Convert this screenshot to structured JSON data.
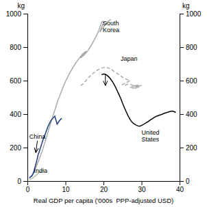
{
  "chart_data": {
    "type": "line",
    "xlabel": "Real GDP per capita ('000s  PPP-adjusted USD)",
    "ylabel": "kg",
    "y2label": "kg",
    "xlim": [
      0,
      40
    ],
    "ylim": [
      0,
      1000
    ],
    "y2lim": [
      0,
      1000
    ],
    "xticks": [
      0,
      10,
      20,
      30,
      40
    ],
    "yticks": [
      0,
      200,
      400,
      600,
      800,
      1000
    ],
    "y2ticks": [
      0,
      200,
      400,
      600,
      800,
      1000
    ],
    "grid": false,
    "series": [
      {
        "color": "#aaaaaa",
        "line_style": "solid",
        "x": [
          1.0,
          1.1,
          1.2,
          1.3,
          1.4,
          1.5,
          1.6,
          1.7,
          1.8,
          1.9,
          2.0,
          2.2,
          2.4,
          2.7,
          3.0,
          3.3,
          3.7,
          4.1,
          4.5,
          5.0,
          5.5,
          6.0,
          6.5,
          7.0,
          7.5,
          8.0,
          8.5,
          9.0,
          9.5,
          10.0,
          10.5,
          11.0,
          11.5,
          12.0,
          12.5,
          13.0,
          13.5,
          14.0,
          14.5,
          15.0,
          15.5,
          15.0,
          14.5,
          14.0,
          14.5,
          15.0,
          15.5,
          16.0,
          16.5,
          17.0,
          17.5,
          18.0,
          18.5,
          19.0,
          19.5,
          19.8,
          20.0,
          19.7,
          19.4,
          19.0,
          19.5,
          20.0,
          20.5,
          21.0,
          21.5,
          22.0
        ],
        "values": [
          25,
          28,
          30,
          33,
          36,
          40,
          44,
          50,
          56,
          63,
          70,
          80,
          92,
          108,
          125,
          145,
          168,
          195,
          225,
          262,
          300,
          338,
          375,
          410,
          445,
          480,
          510,
          540,
          568,
          595,
          618,
          640,
          660,
          680,
          698,
          715,
          730,
          745,
          758,
          768,
          776,
          765,
          750,
          735,
          745,
          755,
          768,
          782,
          800,
          820,
          840,
          862,
          885,
          915,
          948,
          955,
          945,
          930,
          912,
          890,
          905,
          920,
          935,
          950,
          960,
          965
        ]
      },
      {
        "color": "#aaaaaa",
        "line_style": "dashed",
        "x": [
          14.0,
          14.5,
          15.0,
          15.5,
          16.0,
          16.5,
          17.0,
          17.5,
          18.0,
          18.5,
          19.0,
          19.5,
          20.0,
          20.5,
          21.0,
          21.5,
          22.0,
          22.5,
          23.0,
          23.5,
          24.0,
          24.5,
          25.0,
          25.5,
          26.0,
          26.5,
          27.0,
          26.5,
          26.0,
          25.5,
          25.0,
          25.5,
          26.0,
          26.5,
          27.0,
          27.5,
          28.0,
          27.5,
          27.0,
          27.5,
          28.0,
          28.5,
          29.0,
          28.5,
          28.0,
          27.5,
          28.0,
          28.5,
          29.0,
          29.5,
          29.0,
          28.5,
          28.0,
          28.5,
          29.0,
          29.5,
          30.0,
          29.5,
          29.0
        ],
        "values": [
          570,
          578,
          590,
          602,
          616,
          628,
          638,
          648,
          656,
          664,
          670,
          675,
          678,
          680,
          678,
          674,
          668,
          660,
          652,
          644,
          636,
          628,
          620,
          612,
          608,
          604,
          600,
          594,
          588,
          582,
          576,
          570,
          575,
          580,
          578,
          574,
          570,
          564,
          558,
          562,
          568,
          572,
          575,
          568,
          560,
          554,
          558,
          565,
          570,
          572,
          565,
          558,
          552,
          556,
          562,
          568,
          572,
          565,
          558
        ]
      },
      {
        "color": "#1f3d7a",
        "line_style": "solid",
        "x": [
          0.5,
          0.55,
          0.6,
          0.65,
          0.7,
          0.75,
          0.8,
          0.85,
          0.9,
          0.95,
          1.0,
          1.05,
          1.1,
          1.15,
          1.2,
          1.25,
          1.3,
          1.35,
          1.4,
          1.45,
          1.5,
          1.55,
          1.6,
          1.65,
          1.7,
          1.75,
          1.8,
          1.85,
          1.9,
          1.95,
          2.0,
          2.1,
          2.2,
          2.3,
          2.4,
          2.5,
          2.6,
          2.7,
          2.8,
          3.0,
          3.2,
          3.4,
          3.6,
          3.8,
          4.0,
          4.3,
          4.6,
          5.0,
          5.4,
          5.8,
          6.2,
          6.7,
          7.2,
          7.8,
          8.4,
          9.0
        ],
        "values": [
          18,
          19,
          20,
          21,
          22,
          23,
          24,
          25,
          26,
          27,
          28,
          29,
          30,
          32,
          33,
          35,
          37,
          39,
          41,
          43,
          46,
          49,
          52,
          55,
          58,
          62,
          66,
          70,
          75,
          80,
          85,
          92,
          100,
          108,
          116,
          125,
          135,
          145,
          156,
          168,
          182,
          196,
          210,
          225,
          240,
          258,
          276,
          300,
          325,
          345,
          362,
          375,
          388,
          340,
          360,
          375
        ]
      },
      {
        "color": "#b8c8b0",
        "line_style": "solid",
        "x": [
          0.5,
          0.55,
          0.6,
          0.65,
          0.7,
          0.75,
          0.8,
          0.85,
          0.9,
          0.95,
          1.0,
          1.05,
          1.1,
          1.15,
          1.2,
          1.25,
          1.3,
          1.4,
          1.5,
          1.6,
          1.7,
          1.8,
          1.9,
          2.0,
          2.1,
          2.2,
          2.3,
          2.4,
          2.5,
          2.6,
          2.7,
          2.8,
          2.9,
          3.0,
          3.2,
          3.4,
          3.6,
          3.8,
          4.0,
          4.2,
          4.4
        ],
        "values": [
          8,
          9,
          9,
          10,
          10,
          11,
          11,
          12,
          12,
          13,
          13,
          14,
          14,
          15,
          15,
          16,
          17,
          18,
          20,
          21,
          23,
          25,
          27,
          29,
          31,
          33,
          35,
          37,
          39,
          41,
          43,
          45,
          47,
          49,
          52,
          55,
          58,
          61,
          64,
          67,
          70
        ]
      },
      {
        "color": "#000000",
        "line_style": "solid",
        "x": [
          19.5,
          20.0,
          20.5,
          21.0,
          21.5,
          22.0,
          22.5,
          23.0,
          23.5,
          24.0,
          24.5,
          25.0,
          25.5,
          26.0,
          26.5,
          27.0,
          27.5,
          28.0,
          28.5,
          29.0,
          29.5,
          30.0,
          30.5,
          31.0,
          31.5,
          32.0,
          32.5,
          33.0,
          33.5,
          34.0,
          34.5,
          35.0,
          35.5,
          36.0,
          36.5,
          37.0,
          37.5,
          38.0,
          38.5,
          39.0
        ],
        "values": [
          635,
          640,
          638,
          630,
          620,
          605,
          588,
          568,
          545,
          520,
          495,
          465,
          438,
          412,
          388,
          368,
          352,
          342,
          335,
          330,
          328,
          332,
          338,
          345,
          352,
          360,
          368,
          375,
          382,
          388,
          392,
          396,
          400,
          405,
          408,
          412,
          415,
          418,
          415,
          410
        ]
      }
    ],
    "annotations": [
      {
        "text": "South\nKorea",
        "x": 19.8,
        "y": 960
      },
      {
        "text": "Japan",
        "x": 24.5,
        "y": 730
      },
      {
        "text": "China",
        "x": 0.5,
        "y": 265,
        "arrow_to": [
          2.2,
          170
        ]
      },
      {
        "text": "India",
        "x": 1.7,
        "y": 62
      },
      {
        "text": "United\nStates",
        "x": 30.0,
        "y": 305,
        "arrow_from": [
          20.5,
          638
        ],
        "arrow_to": [
          20.5,
          570
        ]
      }
    ]
  }
}
